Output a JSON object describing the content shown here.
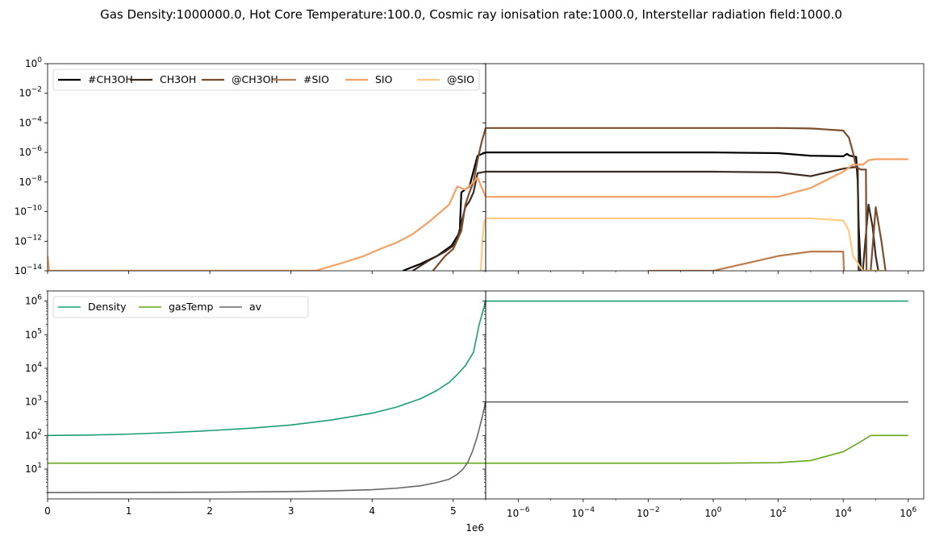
{
  "title": "Gas Density:1000000.0, Hot Core Temperature:100.0, Cosmic ray ionisation rate:1000.0, Interstellar radiation field:1000.0",
  "x_offset_label": "1e6",
  "chart_data": [
    {
      "type": "line",
      "panel": "top-left",
      "yscale": "log",
      "ylim": [
        1e-14,
        1
      ],
      "xlim": [
        0,
        5.4
      ],
      "xunit": "1e6",
      "legend": "top-left",
      "series": [
        {
          "name": "#CH3OH",
          "color": "#000000",
          "x": [
            4.38,
            4.6,
            4.8,
            4.98,
            5.08,
            5.1,
            5.2,
            5.3,
            5.4
          ],
          "y": [
            1e-14,
            3e-14,
            1e-13,
            5e-13,
            4e-12,
            2e-09,
            5e-09,
            6e-07,
            1e-06
          ]
        },
        {
          "name": "CH3OH",
          "color": "#3d2b1f",
          "x": [
            4.5,
            4.7,
            4.9,
            5.0,
            5.05,
            5.15,
            5.2,
            5.25,
            5.3,
            5.4
          ],
          "y": [
            1e-14,
            5e-14,
            2e-13,
            5e-13,
            1.5e-12,
            2e-10,
            5e-10,
            2e-09,
            4e-08,
            5e-08
          ]
        },
        {
          "name": "@CH3OH",
          "color": "#7b4e2e",
          "x": [
            4.75,
            4.9,
            5.0,
            5.1,
            5.15,
            5.2,
            5.25,
            5.3,
            5.35,
            5.4
          ],
          "y": [
            1e-14,
            1e-13,
            3e-13,
            5e-12,
            3e-10,
            2e-09,
            1e-08,
            3e-07,
            5e-06,
            4.5e-05
          ]
        },
        {
          "name": "#SIO",
          "color": "#b97c4f",
          "x": [],
          "y": []
        },
        {
          "name": "SIO",
          "color": "#f3a063",
          "x": [
            0.0,
            0.02,
            3.3,
            3.6,
            3.9,
            4.1,
            4.3,
            4.5,
            4.7,
            4.85,
            4.95,
            5.05,
            5.15,
            5.25,
            5.3,
            5.4
          ],
          "y": [
            1e-13,
            1e-14,
            1e-14,
            3e-14,
            1e-13,
            3e-13,
            8e-13,
            3e-12,
            2e-11,
            1e-10,
            3e-10,
            5e-09,
            3e-09,
            1e-08,
            2e-08,
            1e-09
          ]
        },
        {
          "name": "@SIO",
          "color": "#fdcb82",
          "x": [
            5.34,
            5.36,
            5.38,
            5.4
          ],
          "y": [
            1e-14,
            1e-12,
            2e-11,
            3e-11
          ]
        }
      ]
    },
    {
      "type": "line",
      "panel": "top-right",
      "xscale": "log",
      "yscale": "log",
      "ylim": [
        1e-14,
        1
      ],
      "xlim": [
        1e-07,
        3000000.0
      ],
      "series": [
        {
          "name": "#CH3OH",
          "color": "#000000",
          "x": [
            1e-07,
            1e-06,
            1,
            100,
            1000,
            10000,
            13000,
            16000,
            25000,
            28000,
            30000,
            33000,
            35000
          ],
          "y": [
            1e-06,
            1e-06,
            1e-06,
            9e-07,
            6e-07,
            5.5e-07,
            8e-07,
            6e-07,
            5e-07,
            1e-08,
            1e-11,
            1e-13,
            1e-14
          ]
        },
        {
          "name": "CH3OH",
          "color": "#3d2b1f",
          "x": [
            1e-07,
            1e-06,
            1,
            100,
            1000,
            10000,
            20000,
            28000,
            30000,
            40000,
            60000,
            80000,
            100000,
            120000
          ],
          "y": [
            5e-08,
            5e-08,
            5e-08,
            4.5e-08,
            2.5e-08,
            8e-08,
            1e-07,
            1e-07,
            1e-14,
            1e-14,
            3e-10,
            1e-11,
            1e-13,
            1e-14
          ]
        },
        {
          "name": "@CH3OH",
          "color": "#7b4e2e",
          "x": [
            1e-07,
            1e-06,
            1,
            100,
            1000,
            10000,
            15000,
            20000,
            25000,
            35000,
            50000,
            52000,
            70000,
            100000,
            150000,
            200000
          ],
          "y": [
            4.5e-05,
            4.5e-05,
            4.5e-05,
            4.5e-05,
            4.2e-05,
            3e-05,
            1e-05,
            1e-06,
            1e-07,
            7e-08,
            7e-08,
            1e-14,
            1e-14,
            2e-10,
            1e-12,
            1e-14
          ]
        },
        {
          "name": "#SIO",
          "color": "#b97c4f",
          "x": [
            0.01,
            0.1,
            1,
            100,
            1000,
            10000,
            10500
          ],
          "y": [
            1e-14,
            1e-14,
            1e-14,
            1e-13,
            2e-13,
            2e-13,
            1e-14
          ]
        },
        {
          "name": "SIO",
          "color": "#f3a063",
          "x": [
            1e-07,
            1e-06,
            1,
            100,
            1000,
            10000,
            20000,
            40000,
            60000,
            100000,
            1000000
          ],
          "y": [
            1e-09,
            1e-09,
            1e-09,
            1e-09,
            4e-09,
            5e-08,
            1.5e-07,
            1.5e-07,
            3e-07,
            3.5e-07,
            3.5e-07
          ]
        },
        {
          "name": "@SIO",
          "color": "#fdcb82",
          "x": [
            1e-07,
            1e-06,
            1,
            100,
            1000,
            10000,
            15000,
            20000,
            40000,
            80000,
            100000,
            200000
          ],
          "y": [
            3.5e-11,
            3.5e-11,
            3.5e-11,
            3.5e-11,
            3.5e-11,
            2.5e-11,
            5e-12,
            1e-13,
            1e-14,
            1e-14,
            1e-14,
            1e-14
          ]
        }
      ]
    },
    {
      "type": "line",
      "panel": "bottom-left",
      "yscale": "log",
      "ylim": [
        1.3,
        2000000.0
      ],
      "xlim": [
        0,
        5.4
      ],
      "xunit": "1e6",
      "legend": "top-left",
      "series": [
        {
          "name": "Density",
          "color": "#1b9e77",
          "x": [
            0,
            0.5,
            1,
            1.5,
            2,
            2.5,
            3,
            3.5,
            4,
            4.3,
            4.6,
            4.8,
            4.95,
            5.05,
            5.15,
            5.25,
            5.32,
            5.4
          ],
          "y": [
            100,
            103,
            110,
            122,
            140,
            165,
            205,
            290,
            460,
            700,
            1250,
            2200,
            3800,
            6500,
            12000,
            30000,
            200000,
            1000000
          ]
        },
        {
          "name": "gasTemp",
          "color": "#66a61e",
          "x": [
            0,
            5.4
          ],
          "y": [
            15,
            15
          ]
        },
        {
          "name": "av",
          "color": "#666666",
          "x": [
            0,
            1,
            2,
            3,
            3.5,
            4,
            4.3,
            4.6,
            4.8,
            4.95,
            5.05,
            5.12,
            5.18,
            5.24,
            5.3,
            5.35,
            5.4
          ],
          "y": [
            2,
            2.02,
            2.06,
            2.15,
            2.25,
            2.45,
            2.7,
            3.2,
            4,
            5,
            7,
            10,
            16,
            35,
            100,
            300,
            1000
          ]
        }
      ]
    },
    {
      "type": "line",
      "panel": "bottom-right",
      "xscale": "log",
      "yscale": "log",
      "ylim": [
        1.3,
        2000000.0
      ],
      "xlim": [
        1e-07,
        3000000.0
      ],
      "series": [
        {
          "name": "Density",
          "color": "#1b9e77",
          "x": [
            1e-07,
            1000000
          ],
          "y": [
            1000000,
            1000000
          ]
        },
        {
          "name": "gasTemp",
          "color": "#66a61e",
          "x": [
            1e-07,
            1,
            100,
            1000,
            10000,
            30000,
            70000,
            1000000
          ],
          "y": [
            15,
            15,
            15.5,
            18,
            33,
            60,
            100,
            100
          ]
        },
        {
          "name": "av",
          "color": "#666666",
          "x": [
            1e-07,
            1000000
          ],
          "y": [
            1000,
            1000
          ]
        }
      ]
    }
  ],
  "axes": {
    "top_y_ticks": [
      {
        "v": 1.0,
        "b": "10",
        "e": "0"
      },
      {
        "v": 0.01,
        "b": "10",
        "e": "−2"
      },
      {
        "v": 0.0001,
        "b": "10",
        "e": "−4"
      },
      {
        "v": 1e-06,
        "b": "10",
        "e": "−6"
      },
      {
        "v": 1e-08,
        "b": "10",
        "e": "−8"
      },
      {
        "v": 1e-10,
        "b": "10",
        "e": "−10"
      },
      {
        "v": 1e-12,
        "b": "10",
        "e": "−12"
      },
      {
        "v": 1e-14,
        "b": "10",
        "e": "−14"
      }
    ],
    "bottom_y_ticks": [
      {
        "v": 1000000.0,
        "b": "10",
        "e": "6"
      },
      {
        "v": 100000.0,
        "b": "10",
        "e": "5"
      },
      {
        "v": 10000.0,
        "b": "10",
        "e": "4"
      },
      {
        "v": 1000.0,
        "b": "10",
        "e": "3"
      },
      {
        "v": 100.0,
        "b": "10",
        "e": "2"
      },
      {
        "v": 10.0,
        "b": "10",
        "e": "1"
      }
    ],
    "left_x_ticks": [
      {
        "v": 0,
        "label": "0"
      },
      {
        "v": 1,
        "label": "1"
      },
      {
        "v": 2,
        "label": "2"
      },
      {
        "v": 3,
        "label": "3"
      },
      {
        "v": 4,
        "label": "4"
      },
      {
        "v": 5,
        "label": "5"
      }
    ],
    "right_x_ticks": [
      {
        "v": 1e-06,
        "b": "10",
        "e": "−6"
      },
      {
        "v": 0.0001,
        "b": "10",
        "e": "−4"
      },
      {
        "v": 0.01,
        "b": "10",
        "e": "−2"
      },
      {
        "v": 1.0,
        "b": "10",
        "e": "0"
      },
      {
        "v": 100.0,
        "b": "10",
        "e": "2"
      },
      {
        "v": 10000.0,
        "b": "10",
        "e": "4"
      },
      {
        "v": 1000000.0,
        "b": "10",
        "e": "6"
      }
    ]
  }
}
